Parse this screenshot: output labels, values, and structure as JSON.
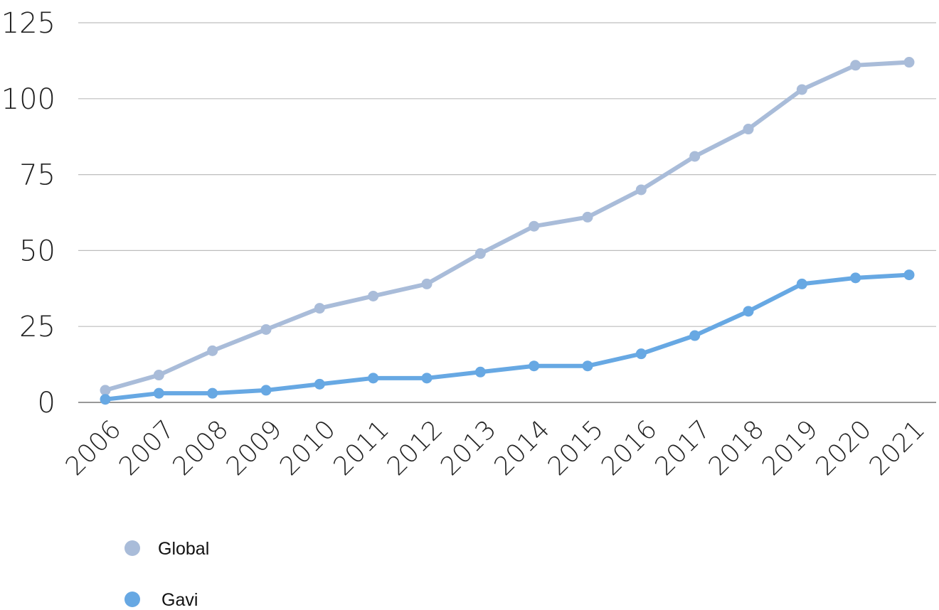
{
  "chart_data": {
    "type": "line",
    "x": [
      "2006",
      "2007",
      "2008",
      "2009",
      "2010",
      "2011",
      "2012",
      "2013",
      "2014",
      "2015",
      "2016",
      "2017",
      "2018",
      "2019",
      "2020",
      "2021"
    ],
    "ylim": [
      0,
      125
    ],
    "yticks": [
      "0",
      "25",
      "50",
      "75",
      "100",
      "125"
    ],
    "grid": true,
    "legend_position": "bottom-left",
    "series": [
      {
        "name": "Global",
        "color": "#a9bcd9",
        "values": [
          4,
          9,
          17,
          24,
          31,
          35,
          39,
          49,
          58,
          61,
          70,
          81,
          90,
          103,
          111,
          112
        ]
      },
      {
        "name": "Gavi",
        "color": "#67a8e3",
        "values": [
          1,
          3,
          3,
          4,
          6,
          8,
          8,
          10,
          12,
          12,
          16,
          22,
          30,
          39,
          41,
          42
        ]
      }
    ]
  }
}
